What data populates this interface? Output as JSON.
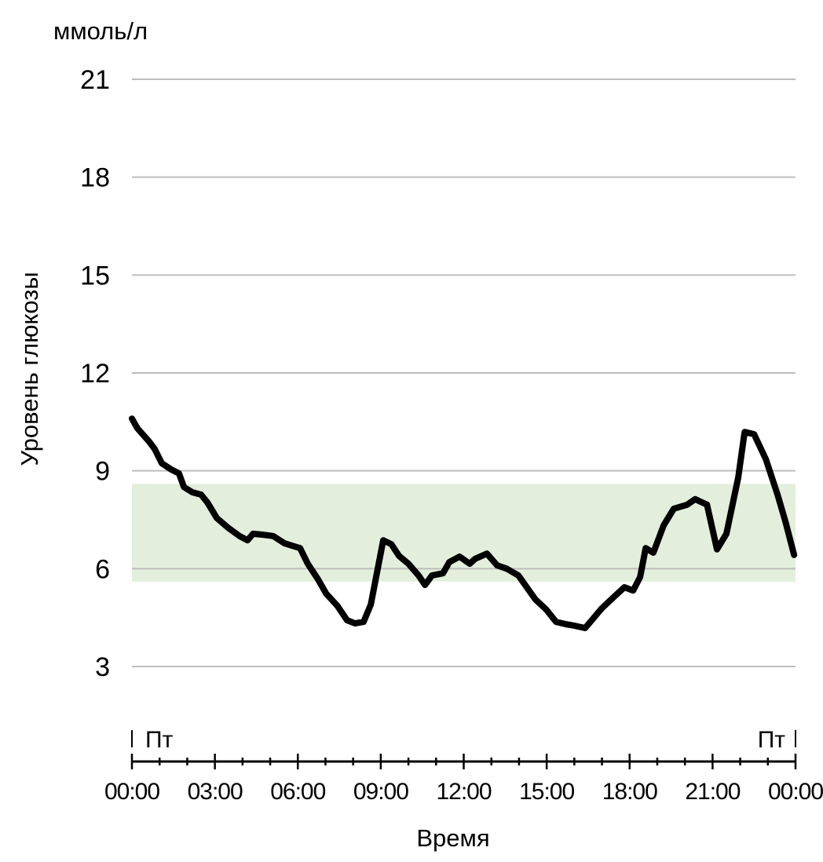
{
  "chart_data": {
    "type": "line",
    "title": "",
    "unit_label": "ммоль/л",
    "ylabel": "Уровень глюкозы",
    "xlabel": "Время",
    "ylim": [
      3,
      21
    ],
    "xlim": [
      0,
      24
    ],
    "yticks": [
      3,
      6,
      9,
      12,
      15,
      18,
      21
    ],
    "ytick_labels": [
      "3",
      "6",
      "9",
      "12",
      "15",
      "18",
      "21"
    ],
    "xtick_labels": [
      "00:00",
      "03:00",
      "06:00",
      "09:00",
      "12:00",
      "15:00",
      "18:00",
      "21:00",
      "00:00"
    ],
    "day_labels": [
      "Пт",
      "Пт"
    ],
    "grid": true,
    "target_range": [
      5.6,
      8.6
    ],
    "colors": {
      "line": "#000000",
      "target": "#e3efdc",
      "grid": "#bdbdbd"
    },
    "series": [
      {
        "name": "Глюкоза",
        "x": [
          0,
          0.2,
          0.62,
          0.82,
          1.08,
          1.42,
          1.7,
          1.88,
          2.19,
          2.5,
          2.73,
          3.07,
          3.47,
          3.89,
          4.18,
          4.38,
          4.74,
          5.11,
          5.51,
          5.8,
          6.08,
          6.36,
          6.73,
          7.02,
          7.44,
          7.78,
          8.07,
          8.38,
          8.64,
          9.09,
          9.38,
          9.66,
          10.0,
          10.37,
          10.6,
          10.85,
          11.25,
          11.48,
          11.85,
          12.22,
          12.41,
          12.84,
          13.21,
          13.55,
          13.98,
          14.32,
          14.6,
          14.97,
          15.34,
          15.68,
          16.02,
          16.39,
          16.68,
          16.99,
          17.44,
          17.81,
          18.13,
          18.38,
          18.58,
          18.86,
          19.23,
          19.6,
          20.08,
          20.37,
          20.8,
          21.16,
          21.5,
          21.93,
          22.16,
          22.5,
          22.93,
          23.35,
          23.64,
          23.95
        ],
        "y": [
          10.6,
          10.3,
          9.9,
          9.67,
          9.23,
          9.04,
          8.92,
          8.5,
          8.34,
          8.27,
          8.03,
          7.55,
          7.26,
          7.0,
          6.87,
          7.07,
          7.04,
          7.0,
          6.78,
          6.7,
          6.63,
          6.15,
          5.67,
          5.24,
          4.85,
          4.42,
          4.32,
          4.37,
          4.9,
          6.87,
          6.75,
          6.39,
          6.15,
          5.79,
          5.5,
          5.79,
          5.86,
          6.2,
          6.37,
          6.15,
          6.3,
          6.46,
          6.1,
          6.0,
          5.79,
          5.38,
          5.05,
          4.76,
          4.37,
          4.3,
          4.25,
          4.18,
          4.47,
          4.78,
          5.14,
          5.43,
          5.33,
          5.74,
          6.63,
          6.49,
          7.33,
          7.84,
          7.96,
          8.13,
          7.96,
          6.59,
          7.07,
          8.8,
          10.19,
          10.12,
          9.35,
          8.27,
          7.43,
          6.42
        ]
      }
    ]
  }
}
